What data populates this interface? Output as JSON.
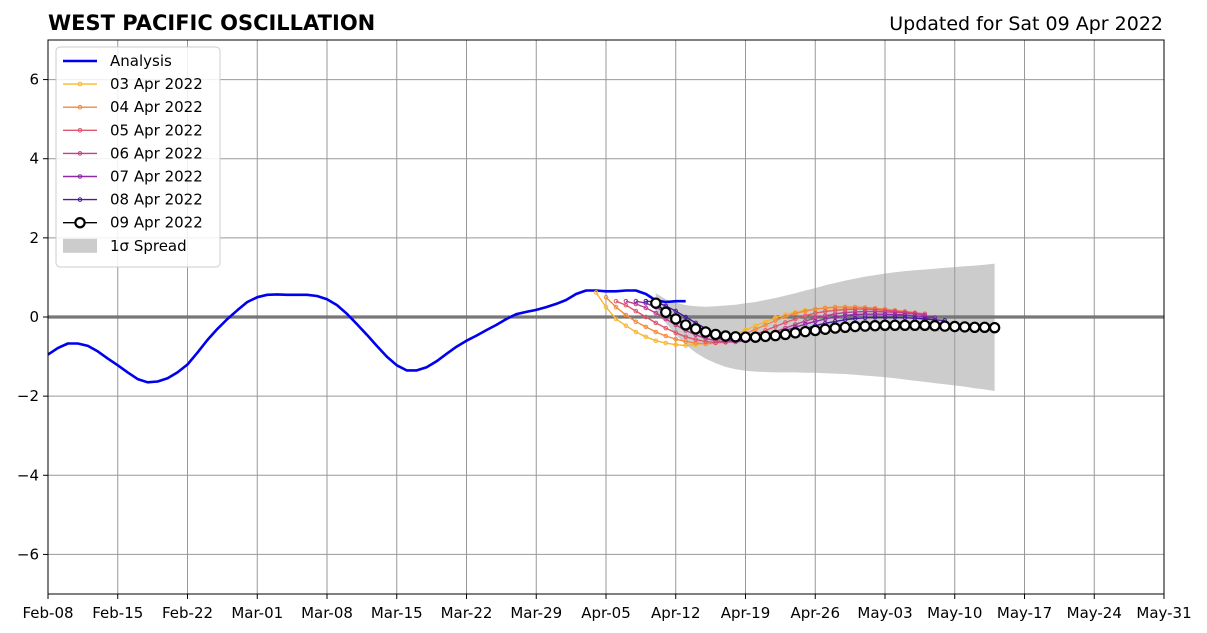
{
  "chart_data": {
    "type": "line",
    "title": "WEST PACIFIC OSCILLATION",
    "subtitle": "Updated for Sat 09 Apr 2022",
    "xlabel": "",
    "ylabel": "",
    "x_range": [
      "2022-02-08",
      "2022-05-31"
    ],
    "ylim": [
      -7,
      7
    ],
    "yticks": [
      -6,
      -4,
      -2,
      0,
      2,
      4,
      6
    ],
    "ytick_labels": [
      "−6",
      "−4",
      "−2",
      "0",
      "2",
      "4",
      "6"
    ],
    "xticks": [
      "2022-02-08",
      "2022-02-15",
      "2022-02-22",
      "2022-03-01",
      "2022-03-08",
      "2022-03-15",
      "2022-03-22",
      "2022-03-29",
      "2022-04-05",
      "2022-04-12",
      "2022-04-19",
      "2022-04-26",
      "2022-05-03",
      "2022-05-10",
      "2022-05-17",
      "2022-05-24",
      "2022-05-31"
    ],
    "xtick_labels": [
      "Feb-08",
      "Feb-15",
      "Feb-22",
      "Mar-01",
      "Mar-08",
      "Mar-15",
      "Mar-22",
      "Mar-29",
      "Apr-05",
      "Apr-12",
      "Apr-19",
      "Apr-26",
      "May-03",
      "May-10",
      "May-17",
      "May-24",
      "May-31"
    ],
    "grid": true,
    "legend_position": "top-left",
    "series": [
      {
        "name": "Analysis",
        "kind": "analysis",
        "color": "#0000ee",
        "start": "2022-02-08",
        "values": [
          -0.95,
          -0.78,
          -0.67,
          -0.67,
          -0.73,
          -0.87,
          -1.05,
          -1.22,
          -1.4,
          -1.57,
          -1.65,
          -1.63,
          -1.55,
          -1.4,
          -1.2,
          -0.9,
          -0.58,
          -0.3,
          -0.05,
          0.17,
          0.38,
          0.5,
          0.56,
          0.57,
          0.56,
          0.56,
          0.56,
          0.53,
          0.45,
          0.3,
          0.08,
          -0.18,
          -0.45,
          -0.73,
          -1.0,
          -1.22,
          -1.35,
          -1.35,
          -1.27,
          -1.12,
          -0.93,
          -0.75,
          -0.6,
          -0.47,
          -0.33,
          -0.2,
          -0.05,
          0.07,
          0.13,
          0.18,
          0.25,
          0.33,
          0.43,
          0.58,
          0.67,
          0.67,
          0.65,
          0.65,
          0.67,
          0.67,
          0.58,
          0.42,
          0.38,
          0.4,
          0.4
        ]
      },
      {
        "name": "03 Apr 2022",
        "kind": "forecast",
        "color": "#f7b733",
        "start": "2022-04-04",
        "values": [
          0.62,
          0.25,
          -0.05,
          -0.22,
          -0.38,
          -0.5,
          -0.6,
          -0.66,
          -0.7,
          -0.72,
          -0.7,
          -0.66,
          -0.6,
          -0.52,
          -0.43,
          -0.33,
          -0.22,
          -0.12,
          -0.02,
          0.06,
          0.12,
          0.17,
          0.2,
          0.22,
          0.23,
          0.23,
          0.22,
          0.21,
          0.19,
          0.17,
          0.14,
          0.12
        ]
      },
      {
        "name": "04 Apr 2022",
        "kind": "forecast",
        "color": "#f28a3c",
        "start": "2022-04-05",
        "values": [
          0.5,
          0.25,
          0.05,
          -0.12,
          -0.25,
          -0.38,
          -0.48,
          -0.56,
          -0.62,
          -0.66,
          -0.68,
          -0.66,
          -0.6,
          -0.52,
          -0.42,
          -0.31,
          -0.2,
          -0.09,
          0.01,
          0.09,
          0.15,
          0.2,
          0.23,
          0.25,
          0.25,
          0.25,
          0.24,
          0.22,
          0.2,
          0.17,
          0.14,
          0.11
        ]
      },
      {
        "name": "05 Apr 2022",
        "kind": "forecast",
        "color": "#e0566a",
        "start": "2022-04-06",
        "values": [
          0.4,
          0.3,
          0.15,
          0.0,
          -0.15,
          -0.28,
          -0.4,
          -0.5,
          -0.57,
          -0.62,
          -0.65,
          -0.64,
          -0.6,
          -0.53,
          -0.44,
          -0.34,
          -0.24,
          -0.14,
          -0.05,
          0.03,
          0.1,
          0.14,
          0.17,
          0.19,
          0.2,
          0.2,
          0.19,
          0.17,
          0.15,
          0.13,
          0.1,
          0.08
        ]
      },
      {
        "name": "06 Apr 2022",
        "kind": "forecast",
        "color": "#c03e8c",
        "start": "2022-04-07",
        "values": [
          0.4,
          0.33,
          0.23,
          0.1,
          -0.05,
          -0.2,
          -0.34,
          -0.45,
          -0.54,
          -0.6,
          -0.63,
          -0.63,
          -0.6,
          -0.54,
          -0.46,
          -0.37,
          -0.28,
          -0.19,
          -0.1,
          -0.03,
          0.03,
          0.08,
          0.11,
          0.13,
          0.14,
          0.14,
          0.13,
          0.12,
          0.1,
          0.08,
          0.05
        ]
      },
      {
        "name": "07 Apr 2022",
        "kind": "forecast",
        "color": "#8e2aa8",
        "start": "2022-04-08",
        "values": [
          0.4,
          0.35,
          0.25,
          0.12,
          -0.03,
          -0.18,
          -0.32,
          -0.44,
          -0.53,
          -0.58,
          -0.6,
          -0.59,
          -0.55,
          -0.49,
          -0.42,
          -0.34,
          -0.26,
          -0.18,
          -0.11,
          -0.05,
          0.0,
          0.04,
          0.06,
          0.07,
          0.07,
          0.07,
          0.06,
          0.05,
          0.03,
          0.01,
          -0.01
        ]
      },
      {
        "name": "08 Apr 2022",
        "kind": "forecast",
        "color": "#4b1a9e",
        "start": "2022-04-09",
        "values": [
          0.4,
          0.38,
          0.28,
          0.15,
          0.0,
          -0.15,
          -0.29,
          -0.41,
          -0.5,
          -0.55,
          -0.58,
          -0.57,
          -0.54,
          -0.49,
          -0.43,
          -0.36,
          -0.29,
          -0.22,
          -0.16,
          -0.11,
          -0.07,
          -0.04,
          -0.02,
          -0.01,
          -0.01,
          -0.01,
          -0.02,
          -0.03,
          -0.05,
          -0.07,
          -0.09
        ]
      },
      {
        "name": "09 Apr 2022",
        "kind": "current",
        "color": "#000000",
        "start": "2022-04-10",
        "values": [
          0.35,
          0.12,
          -0.05,
          -0.2,
          -0.3,
          -0.38,
          -0.44,
          -0.48,
          -0.5,
          -0.51,
          -0.51,
          -0.49,
          -0.47,
          -0.44,
          -0.4,
          -0.37,
          -0.34,
          -0.31,
          -0.28,
          -0.26,
          -0.24,
          -0.23,
          -0.22,
          -0.21,
          -0.21,
          -0.21,
          -0.21,
          -0.21,
          -0.22,
          -0.23,
          -0.24,
          -0.25,
          -0.26,
          -0.26,
          -0.27
        ]
      }
    ],
    "spread": {
      "name": "1σ Spread",
      "color": "#cccccc",
      "start": "2022-04-10",
      "upper": [
        0.6,
        0.45,
        0.36,
        0.3,
        0.27,
        0.26,
        0.27,
        0.29,
        0.31,
        0.35,
        0.38,
        0.43,
        0.48,
        0.54,
        0.6,
        0.67,
        0.73,
        0.8,
        0.86,
        0.92,
        0.97,
        1.02,
        1.06,
        1.1,
        1.13,
        1.16,
        1.18,
        1.2,
        1.22,
        1.24,
        1.26,
        1.28,
        1.3,
        1.32,
        1.35
      ],
      "lower": [
        0.1,
        -0.15,
        -0.45,
        -0.7,
        -0.9,
        -1.05,
        -1.17,
        -1.26,
        -1.32,
        -1.36,
        -1.38,
        -1.39,
        -1.4,
        -1.4,
        -1.4,
        -1.41,
        -1.41,
        -1.42,
        -1.43,
        -1.44,
        -1.46,
        -1.48,
        -1.5,
        -1.52,
        -1.55,
        -1.58,
        -1.61,
        -1.64,
        -1.67,
        -1.7,
        -1.73,
        -1.76,
        -1.8,
        -1.83,
        -1.87
      ]
    }
  }
}
